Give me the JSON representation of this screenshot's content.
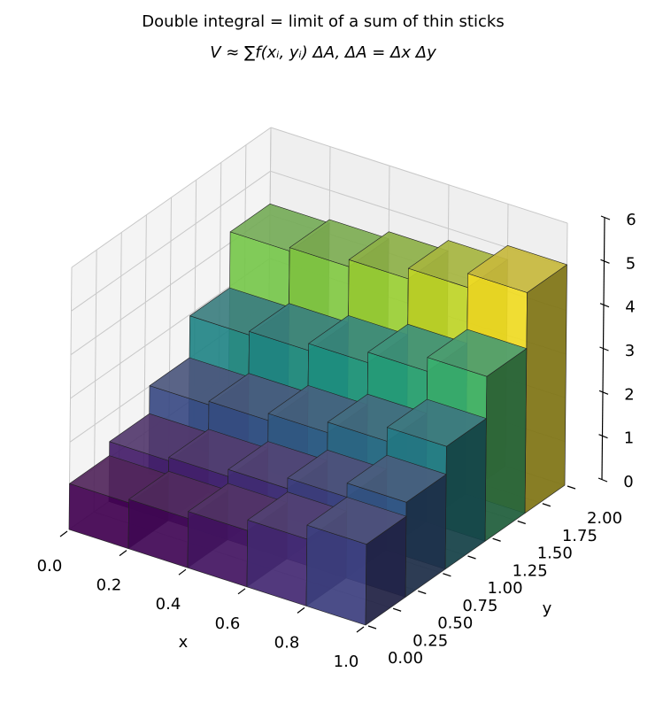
{
  "chart_data": {
    "type": "bar3d",
    "title": "Double integral = limit of a sum of thin sticks",
    "subtitle": "V ≈ ∑f(xᵢ, yᵢ) ΔA,   ΔA = Δx Δy",
    "xlabel": "x",
    "ylabel": "y",
    "x_bins": [
      0,
      0.2,
      0.4,
      0.6,
      0.8,
      1.0
    ],
    "y_bins": [
      0,
      0.4,
      0.8,
      1.2,
      1.6,
      2.0
    ],
    "values": [
      [
        1.05,
        1.13,
        1.29,
        1.53,
        1.85
      ],
      [
        1.37,
        1.45,
        1.61,
        1.85,
        2.17
      ],
      [
        2.01,
        2.09,
        2.25,
        2.49,
        2.81
      ],
      [
        2.97,
        3.05,
        3.21,
        3.45,
        3.77
      ],
      [
        4.25,
        4.33,
        4.49,
        4.73,
        5.05
      ]
    ],
    "colormap": "viridis",
    "xlim": [
      0,
      1
    ],
    "ylim": [
      0,
      2
    ],
    "zlim": [
      0,
      6
    ],
    "xticks": [
      {
        "value": 0,
        "label": "0.0"
      },
      0.2,
      0.4,
      0.6,
      0.8,
      {
        "value": 1,
        "label": "1.0"
      }
    ],
    "yticks": [
      {
        "value": 0,
        "label": "0.00"
      },
      0.25,
      {
        "value": 0.5,
        "label": "0.50"
      },
      0.75,
      {
        "value": 1,
        "label": "1.00"
      },
      1.25,
      {
        "value": 1.5,
        "label": "1.50"
      },
      1.75,
      {
        "value": 2,
        "label": "2.00"
      }
    ],
    "zticks": [
      0,
      1,
      2,
      3,
      4,
      5,
      6
    ],
    "grid": true
  }
}
